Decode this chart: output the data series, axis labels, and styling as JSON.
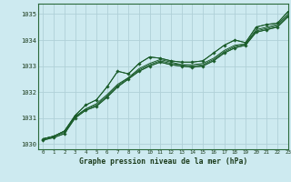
{
  "title": "Graphe pression niveau de la mer (hPa)",
  "bg_color": "#cdeaf0",
  "grid_color": "#b0d0d8",
  "line_color": "#1a5c2a",
  "xlim": [
    -0.5,
    23
  ],
  "ylim": [
    1029.8,
    1035.4
  ],
  "yticks": [
    1030,
    1031,
    1032,
    1033,
    1034,
    1035
  ],
  "xticks": [
    0,
    1,
    2,
    3,
    4,
    5,
    6,
    7,
    8,
    9,
    10,
    11,
    12,
    13,
    14,
    15,
    16,
    17,
    18,
    19,
    20,
    21,
    22,
    23
  ],
  "series": [
    [
      1030.2,
      1030.3,
      1030.5,
      1031.1,
      1031.5,
      1031.7,
      1032.2,
      1032.8,
      1032.7,
      1033.1,
      1033.35,
      1033.3,
      1033.2,
      1033.15,
      1033.15,
      1033.2,
      1033.5,
      1033.8,
      1034.0,
      1033.9,
      1034.5,
      1034.6,
      1034.65,
      1035.1
    ],
    [
      1030.2,
      1030.3,
      1030.5,
      1031.05,
      1031.35,
      1031.55,
      1031.9,
      1032.3,
      1032.55,
      1032.9,
      1033.1,
      1033.25,
      1033.15,
      1033.05,
      1033.05,
      1033.1,
      1033.3,
      1033.6,
      1033.8,
      1033.85,
      1034.4,
      1034.5,
      1034.6,
      1035.0
    ],
    [
      1030.2,
      1030.3,
      1030.45,
      1031.05,
      1031.35,
      1031.5,
      1031.85,
      1032.25,
      1032.55,
      1032.85,
      1033.05,
      1033.2,
      1033.1,
      1033.05,
      1033.0,
      1033.05,
      1033.25,
      1033.55,
      1033.75,
      1033.85,
      1034.35,
      1034.45,
      1034.55,
      1034.95
    ],
    [
      1030.15,
      1030.25,
      1030.4,
      1031.0,
      1031.3,
      1031.45,
      1031.8,
      1032.2,
      1032.5,
      1032.8,
      1033.0,
      1033.15,
      1033.05,
      1033.0,
      1032.95,
      1033.0,
      1033.2,
      1033.5,
      1033.7,
      1033.8,
      1034.3,
      1034.4,
      1034.5,
      1034.9
    ]
  ],
  "marker_series_top": [
    1030.2,
    1030.3,
    1030.5,
    1031.1,
    1031.5,
    1031.7,
    1032.2,
    1032.8,
    1032.7,
    1033.1,
    1033.35,
    1033.3,
    1033.2,
    1033.15,
    1033.15,
    1033.2,
    1033.5,
    1033.8,
    1034.0,
    1033.9,
    1034.5,
    1034.6,
    1034.65,
    1035.1
  ],
  "marker_series_bot": [
    1030.15,
    1030.25,
    1030.4,
    1031.0,
    1031.3,
    1031.45,
    1031.8,
    1032.2,
    1032.5,
    1032.8,
    1033.0,
    1033.15,
    1033.05,
    1033.0,
    1032.95,
    1033.0,
    1033.2,
    1033.5,
    1033.7,
    1033.8,
    1034.3,
    1034.4,
    1034.5,
    1034.9
  ]
}
